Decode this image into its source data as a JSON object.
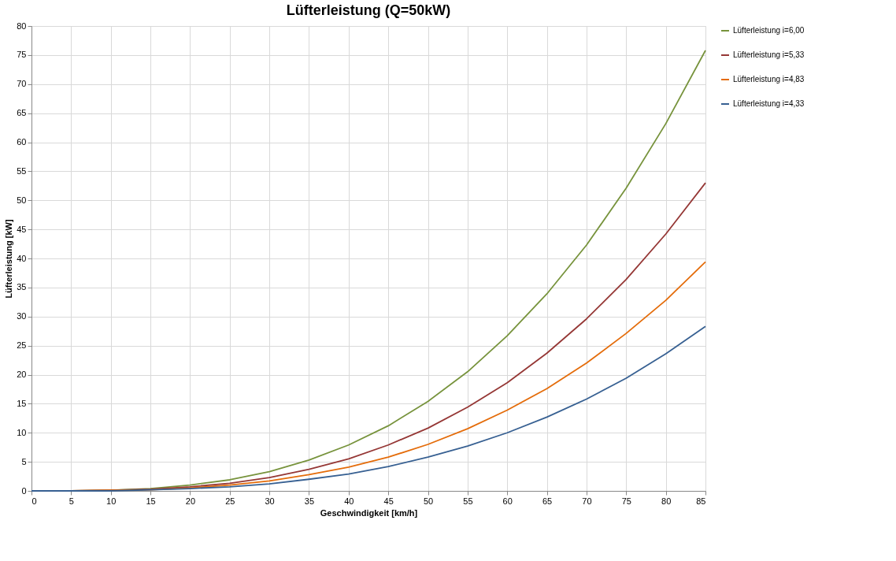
{
  "chart_data": {
    "type": "line",
    "title": "Lüfterleistung (Q=50kW)",
    "xlabel": "Geschwindigkeit [km/h]",
    "ylabel": "Lüfterleistung [kW]",
    "x": [
      0,
      5,
      10,
      15,
      20,
      25,
      30,
      35,
      40,
      45,
      50,
      55,
      60,
      65,
      70,
      75,
      80,
      85
    ],
    "series": [
      {
        "name": "Lüfterleistung i=6,00",
        "color": "#77933c",
        "values": [
          0,
          0,
          0.1,
          0.4,
          1.0,
          1.9,
          3.3,
          5.3,
          7.9,
          11.2,
          15.4,
          20.5,
          26.7,
          33.9,
          42.3,
          52.1,
          63.2,
          75.8
        ]
      },
      {
        "name": "Lüfterleistung i=5,33",
        "color": "#953735",
        "values": [
          0,
          0,
          0.1,
          0.3,
          0.7,
          1.3,
          2.3,
          3.7,
          5.5,
          7.9,
          10.8,
          14.4,
          18.6,
          23.7,
          29.6,
          36.4,
          44.2,
          53.0
        ]
      },
      {
        "name": "Lüfterleistung i=4,83",
        "color": "#e46c0a",
        "values": [
          0,
          0,
          0.1,
          0.2,
          0.5,
          1.0,
          1.7,
          2.8,
          4.1,
          5.8,
          8.0,
          10.7,
          13.9,
          17.6,
          22.0,
          27.1,
          32.8,
          39.4
        ]
      },
      {
        "name": "Lüfterleistung i=4,33",
        "color": "#376092",
        "values": [
          0,
          0,
          0.0,
          0.2,
          0.4,
          0.7,
          1.2,
          2.0,
          2.9,
          4.2,
          5.8,
          7.7,
          10.0,
          12.7,
          15.8,
          19.4,
          23.6,
          28.3
        ]
      }
    ],
    "xlim": [
      0,
      85
    ],
    "xticks": [
      0,
      5,
      10,
      15,
      20,
      25,
      30,
      35,
      40,
      45,
      50,
      55,
      60,
      65,
      70,
      75,
      80,
      85
    ],
    "ylim": [
      0,
      80
    ],
    "yticks": [
      0,
      5,
      10,
      15,
      20,
      25,
      30,
      35,
      40,
      45,
      50,
      55,
      60,
      65,
      70,
      75,
      80
    ],
    "grid": true,
    "legend": "top right",
    "marker": "none",
    "line_style": "solid"
  }
}
